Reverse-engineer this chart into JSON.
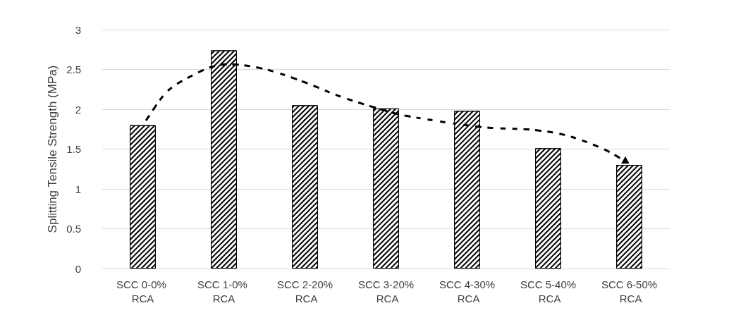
{
  "chart_data": {
    "type": "bar",
    "ylabel": "Splitting Tensile Strength (MPa)",
    "categories": [
      "SCC 0-0% RCA",
      "SCC 1-0% RCA",
      "SCC 2-20% RCA",
      "SCC 3-20% RCA",
      "SCC 4-30% RCA",
      "SCC 5-40% RCA",
      "SCC 6-50% RCA"
    ],
    "values": [
      1.8,
      2.74,
      2.05,
      2.01,
      1.98,
      1.51,
      1.3
    ],
    "color": "#000000",
    "ylim": [
      0,
      3
    ],
    "yticks": [
      0,
      0.5,
      1,
      1.5,
      2,
      2.5,
      3
    ],
    "grid": "y"
  }
}
